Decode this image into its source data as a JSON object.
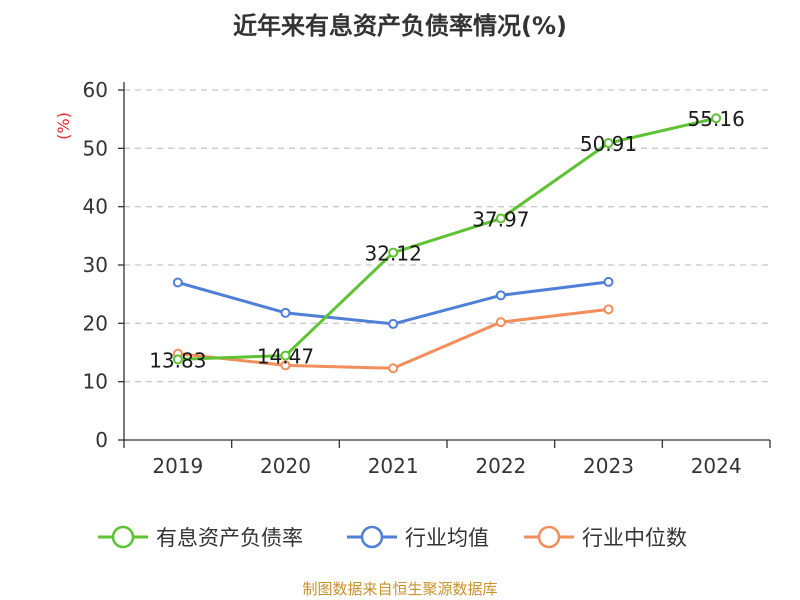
{
  "chart_data": {
    "type": "line",
    "title": "近年来有息资产负债率情况(%)",
    "ylabel": "(%)",
    "ylabel_color": "#e5252a",
    "categories": [
      "2019",
      "2020",
      "2021",
      "2022",
      "2023",
      "2024"
    ],
    "ylim": [
      0,
      60
    ],
    "yticks": [
      "0",
      "10",
      "20",
      "30",
      "40",
      "50",
      "60"
    ],
    "grid": "horizontal dashed",
    "legend_position": "bottom",
    "series": [
      {
        "name": "有息资产负债率",
        "color": "#5ec234",
        "values": [
          13.83,
          14.47,
          32.12,
          37.97,
          50.91,
          55.16
        ],
        "labels": [
          "13.83",
          "14.47",
          "32.12",
          "37.97",
          "50.91",
          "55.16"
        ]
      },
      {
        "name": "行业均值",
        "color": "#4f7fd6",
        "values": [
          27.0,
          21.8,
          19.9,
          24.8,
          27.1,
          null
        ]
      },
      {
        "name": "行业中位数",
        "color": "#f28e5c",
        "values": [
          14.8,
          12.8,
          12.3,
          20.2,
          22.4,
          null
        ]
      }
    ]
  },
  "footer": {
    "source": "制图数据来自恒生聚源数据库"
  }
}
